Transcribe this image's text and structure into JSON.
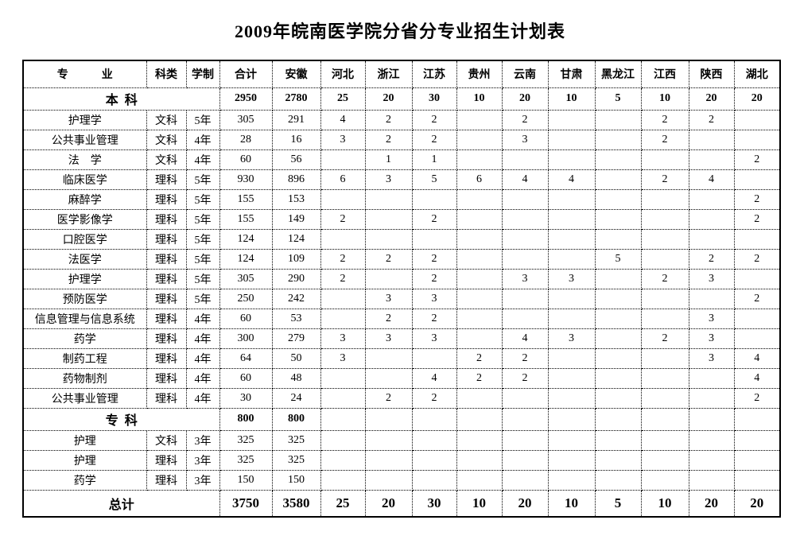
{
  "title": "2009年皖南医学院分省分专业招生计划表",
  "table": {
    "columns": [
      "专　　　业",
      "科类",
      "学制",
      "合计",
      "安徽",
      "河北",
      "浙江",
      "江苏",
      "贵州",
      "云南",
      "甘肃",
      "黑龙江",
      "江西",
      "陕西",
      "湖北"
    ],
    "rows": [
      {
        "type": "section",
        "label": "本  科",
        "values": [
          "2950",
          "2780",
          "25",
          "20",
          "30",
          "10",
          "20",
          "10",
          "5",
          "10",
          "20",
          "20"
        ]
      },
      {
        "type": "data",
        "major": "护理学",
        "category": "文科",
        "duration": "5年",
        "values": [
          "305",
          "291",
          "4",
          "2",
          "2",
          "",
          "2",
          "",
          "",
          "2",
          "2",
          ""
        ]
      },
      {
        "type": "data",
        "major": "公共事业管理",
        "category": "文科",
        "duration": "4年",
        "values": [
          "28",
          "16",
          "3",
          "2",
          "2",
          "",
          "3",
          "",
          "",
          "2",
          "",
          ""
        ]
      },
      {
        "type": "data",
        "major": "法　学",
        "category": "文科",
        "duration": "4年",
        "values": [
          "60",
          "56",
          "",
          "1",
          "1",
          "",
          "",
          "",
          "",
          "",
          "",
          "2"
        ]
      },
      {
        "type": "data",
        "major": "临床医学",
        "category": "理科",
        "duration": "5年",
        "values": [
          "930",
          "896",
          "6",
          "3",
          "5",
          "6",
          "4",
          "4",
          "",
          "2",
          "4",
          ""
        ]
      },
      {
        "type": "data",
        "major": "麻醉学",
        "category": "理科",
        "duration": "5年",
        "values": [
          "155",
          "153",
          "",
          "",
          "",
          "",
          "",
          "",
          "",
          "",
          "",
          "2"
        ]
      },
      {
        "type": "data",
        "major": "医学影像学",
        "category": "理科",
        "duration": "5年",
        "values": [
          "155",
          "149",
          "2",
          "",
          "2",
          "",
          "",
          "",
          "",
          "",
          "",
          "2"
        ]
      },
      {
        "type": "data",
        "major": "口腔医学",
        "category": "理科",
        "duration": "5年",
        "values": [
          "124",
          "124",
          "",
          "",
          "",
          "",
          "",
          "",
          "",
          "",
          "",
          ""
        ]
      },
      {
        "type": "data",
        "major": "法医学",
        "category": "理科",
        "duration": "5年",
        "values": [
          "124",
          "109",
          "2",
          "2",
          "2",
          "",
          "",
          "",
          "5",
          "",
          "2",
          "2"
        ]
      },
      {
        "type": "data",
        "major": "护理学",
        "category": "理科",
        "duration": "5年",
        "values": [
          "305",
          "290",
          "2",
          "",
          "2",
          "",
          "3",
          "3",
          "",
          "2",
          "3",
          ""
        ]
      },
      {
        "type": "data",
        "major": "预防医学",
        "category": "理科",
        "duration": "5年",
        "values": [
          "250",
          "242",
          "",
          "3",
          "3",
          "",
          "",
          "",
          "",
          "",
          "",
          "2"
        ]
      },
      {
        "type": "data",
        "major": "信息管理与信息系统",
        "category": "理科",
        "duration": "4年",
        "values": [
          "60",
          "53",
          "",
          "2",
          "2",
          "",
          "",
          "",
          "",
          "",
          "3",
          ""
        ]
      },
      {
        "type": "data",
        "major": "药学",
        "category": "理科",
        "duration": "4年",
        "values": [
          "300",
          "279",
          "3",
          "3",
          "3",
          "",
          "4",
          "3",
          "",
          "2",
          "3",
          ""
        ]
      },
      {
        "type": "data",
        "major": "制药工程",
        "category": "理科",
        "duration": "4年",
        "values": [
          "64",
          "50",
          "3",
          "",
          "",
          "2",
          "2",
          "",
          "",
          "",
          "3",
          "4"
        ]
      },
      {
        "type": "data",
        "major": "药物制剂",
        "category": "理科",
        "duration": "4年",
        "values": [
          "60",
          "48",
          "",
          "",
          "4",
          "2",
          "2",
          "",
          "",
          "",
          "",
          "4"
        ]
      },
      {
        "type": "data",
        "major": "公共事业管理",
        "category": "理科",
        "duration": "4年",
        "values": [
          "30",
          "24",
          "",
          "2",
          "2",
          "",
          "",
          "",
          "",
          "",
          "",
          "2"
        ]
      },
      {
        "type": "section",
        "label": "专  科",
        "values": [
          "800",
          "800",
          "",
          "",
          "",
          "",
          "",
          "",
          "",
          "",
          "",
          ""
        ]
      },
      {
        "type": "data",
        "major": "护理",
        "category": "文科",
        "duration": "3年",
        "values": [
          "325",
          "325",
          "",
          "",
          "",
          "",
          "",
          "",
          "",
          "",
          "",
          ""
        ]
      },
      {
        "type": "data",
        "major": "护理",
        "category": "理科",
        "duration": "3年",
        "values": [
          "325",
          "325",
          "",
          "",
          "",
          "",
          "",
          "",
          "",
          "",
          "",
          ""
        ]
      },
      {
        "type": "data",
        "major": "药学",
        "category": "理科",
        "duration": "3年",
        "values": [
          "150",
          "150",
          "",
          "",
          "",
          "",
          "",
          "",
          "",
          "",
          "",
          ""
        ]
      },
      {
        "type": "total",
        "label": "总计",
        "values": [
          "3750",
          "3580",
          "25",
          "20",
          "30",
          "10",
          "20",
          "10",
          "5",
          "10",
          "20",
          "20"
        ]
      }
    ]
  }
}
